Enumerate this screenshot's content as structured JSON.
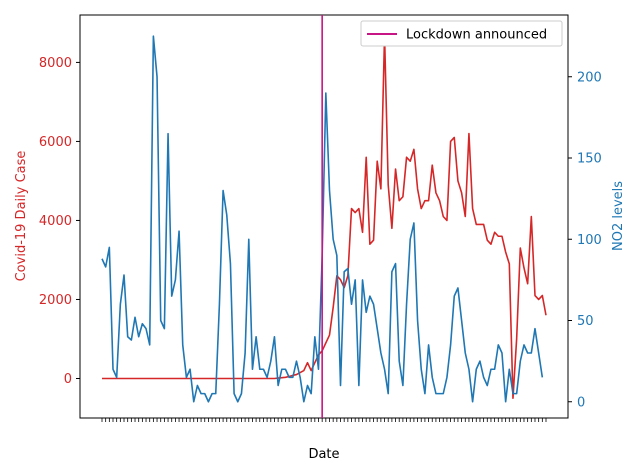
{
  "chart_data": {
    "type": "line",
    "xlabel": "Date",
    "ylabel_left": "Covid-19 Daily Case",
    "ylabel_right": "NO2 levels",
    "ylim_left": [
      -1000,
      9200
    ],
    "ylim_right": [
      -10,
      238
    ],
    "yticks_left": [
      0,
      2000,
      4000,
      6000,
      8000
    ],
    "yticks_right": [
      0,
      50,
      100,
      150,
      200
    ],
    "lockdown_index": 60,
    "lockdown_label": "Lockdown announced",
    "legend_position": "upper-right",
    "grid": false,
    "colors": {
      "cases": "#d62728",
      "no2": "#1f77b4",
      "lockdown": "#c71585",
      "left_axis_text": "#d62728",
      "right_axis_text": "#1f77b4"
    },
    "series": [
      {
        "axis": "left",
        "values": [
          0,
          0,
          0,
          0,
          0,
          0,
          0,
          0,
          0,
          0,
          0,
          0,
          0,
          0,
          0,
          0,
          0,
          0,
          0,
          0,
          0,
          0,
          0,
          0,
          0,
          0,
          0,
          0,
          0,
          0,
          0,
          0,
          0,
          0,
          0,
          0,
          0,
          0,
          0,
          0,
          0,
          0,
          0,
          0,
          0,
          0,
          0,
          0,
          10,
          20,
          30,
          50,
          80,
          100,
          150,
          200,
          400,
          200,
          400,
          600,
          700,
          900,
          1100,
          1800,
          2600,
          2500,
          2300,
          2600,
          4300,
          4200,
          4300,
          3700,
          5600,
          3400,
          3500,
          5500,
          4800,
          8700,
          4900,
          3800,
          5300,
          4500,
          4600,
          5600,
          5500,
          5800,
          4800,
          4300,
          4500,
          4500,
          5400,
          4700,
          4500,
          4100,
          4000,
          6000,
          6100,
          5000,
          4700,
          4100,
          6200,
          4300,
          3900,
          3900,
          3900,
          3500,
          3400,
          3700,
          3600,
          3600,
          3200,
          2900,
          -500,
          1000,
          3300,
          2800,
          2400,
          4100,
          2100,
          2000,
          2100,
          1600
        ]
      },
      {
        "axis": "right",
        "values": [
          88,
          83,
          95,
          20,
          15,
          60,
          78,
          40,
          38,
          52,
          40,
          48,
          45,
          35,
          225,
          200,
          50,
          45,
          165,
          65,
          75,
          105,
          35,
          15,
          20,
          0,
          10,
          5,
          5,
          0,
          5,
          5,
          60,
          130,
          115,
          85,
          5,
          0,
          5,
          30,
          100,
          20,
          40,
          20,
          20,
          15,
          25,
          40,
          10,
          20,
          20,
          15,
          15,
          25,
          15,
          0,
          10,
          5,
          40,
          20,
          90,
          190,
          130,
          100,
          90,
          10,
          80,
          82,
          60,
          75,
          10,
          75,
          55,
          65,
          60,
          45,
          30,
          20,
          5,
          80,
          85,
          25,
          10,
          60,
          100,
          110,
          50,
          20,
          5,
          35,
          15,
          5,
          5,
          5,
          15,
          35,
          65,
          70,
          50,
          30,
          20,
          0,
          20,
          25,
          15,
          10,
          20,
          20,
          35,
          30,
          0,
          20,
          5,
          5,
          25,
          35,
          30,
          30,
          45,
          30,
          15
        ]
      }
    ]
  }
}
